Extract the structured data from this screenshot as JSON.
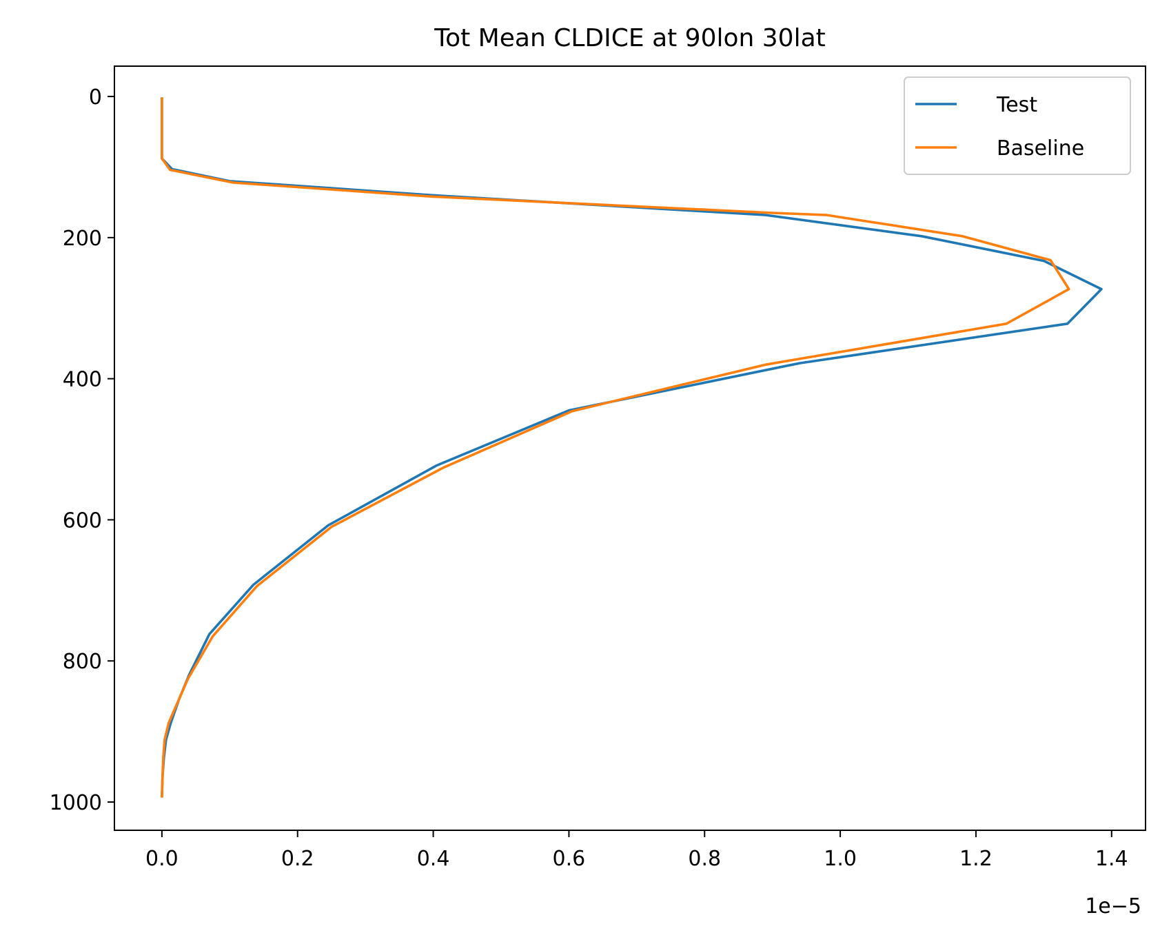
{
  "chart_data": {
    "type": "line",
    "title": "Tot Mean CLDICE at 90lon 30lat",
    "xlabel": "",
    "ylabel": "",
    "x_offset_text": "1e−5",
    "xlim": [
      -0.07,
      1.45
    ],
    "ylim": [
      1040,
      -43
    ],
    "y_inverted": true,
    "grid": false,
    "legend_position": "top-right",
    "x_ticks": [
      0.0,
      0.2,
      0.4,
      0.6,
      0.8,
      1.0,
      1.2,
      1.4
    ],
    "x_tick_labels": [
      "0.0",
      "0.2",
      "0.4",
      "0.6",
      "0.8",
      "1.0",
      "1.2",
      "1.4"
    ],
    "y_ticks": [
      0,
      200,
      400,
      600,
      800,
      1000
    ],
    "y_tick_labels": [
      "0",
      "200",
      "400",
      "600",
      "800",
      "1000"
    ],
    "series": [
      {
        "name": "Test",
        "color": "#1f77b4",
        "points": [
          [
            0.0,
            3
          ],
          [
            0.0,
            88
          ],
          [
            0.015,
            103
          ],
          [
            0.1,
            120
          ],
          [
            0.4,
            140
          ],
          [
            0.89,
            168
          ],
          [
            1.12,
            198
          ],
          [
            1.3,
            233
          ],
          [
            1.385,
            273
          ],
          [
            1.335,
            322
          ],
          [
            0.94,
            378
          ],
          [
            0.6,
            445
          ],
          [
            0.405,
            523
          ],
          [
            0.245,
            608
          ],
          [
            0.135,
            692
          ],
          [
            0.07,
            762
          ],
          [
            0.04,
            820
          ],
          [
            0.025,
            855
          ],
          [
            0.013,
            888
          ],
          [
            0.006,
            912
          ],
          [
            0.003,
            937
          ],
          [
            0.001,
            962
          ],
          [
            0.0,
            992
          ]
        ]
      },
      {
        "name": "Baseline",
        "color": "#ff7f0e",
        "points": [
          [
            0.0,
            3
          ],
          [
            0.0,
            88
          ],
          [
            0.012,
            104
          ],
          [
            0.105,
            122
          ],
          [
            0.4,
            142
          ],
          [
            0.9,
            165
          ],
          [
            0.98,
            168
          ],
          [
            1.18,
            198
          ],
          [
            1.31,
            232
          ],
          [
            1.337,
            273
          ],
          [
            1.245,
            322
          ],
          [
            0.89,
            380
          ],
          [
            0.605,
            446
          ],
          [
            0.415,
            526
          ],
          [
            0.25,
            610
          ],
          [
            0.14,
            694
          ],
          [
            0.075,
            765
          ],
          [
            0.038,
            826
          ],
          [
            0.01,
            888
          ],
          [
            0.004,
            912
          ],
          [
            0.002,
            937
          ],
          [
            0.001,
            962
          ],
          [
            0.0,
            992
          ]
        ]
      }
    ]
  }
}
